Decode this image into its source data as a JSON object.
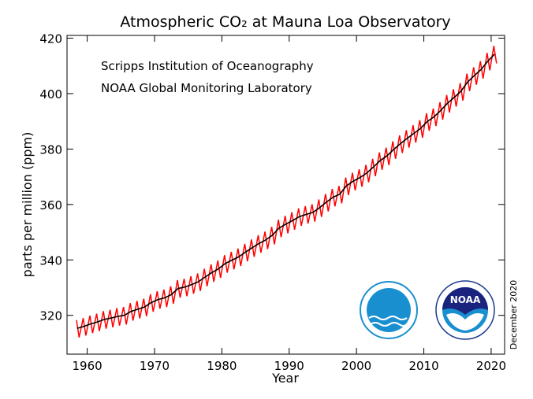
{
  "chart_data": {
    "type": "line",
    "title": "Atmospheric CO₂ at Mauna Loa Observatory",
    "annotations": [
      "Scripps Institution of Oceanography",
      "NOAA Global Monitoring Laboratory"
    ],
    "date_note": "December 2020",
    "logo_text": "NOAA",
    "xlabel": "Year",
    "ylabel": "parts per million (ppm)",
    "xlim": [
      1957,
      2022
    ],
    "ylim": [
      306,
      421
    ],
    "xticks": [
      1960,
      1970,
      1980,
      1990,
      2000,
      2010,
      2020
    ],
    "yticks": [
      320,
      340,
      360,
      380,
      400,
      420
    ],
    "series": [
      {
        "color": "#ff0000",
        "x": [
          1958.4,
          1958.8,
          1959.4,
          1959.8,
          1960.4,
          1960.8,
          1961.4,
          1961.8,
          1962.4,
          1962.8,
          1963.4,
          1963.8,
          1964.4,
          1964.8,
          1965.4,
          1965.8,
          1966.4,
          1966.8,
          1967.4,
          1967.8,
          1968.4,
          1968.8,
          1969.4,
          1969.8,
          1970.4,
          1970.8,
          1971.4,
          1971.8,
          1972.4,
          1972.8,
          1973.4,
          1973.8,
          1974.4,
          1974.8,
          1975.4,
          1975.8,
          1976.4,
          1976.8,
          1977.4,
          1977.8,
          1978.4,
          1978.8,
          1979.4,
          1979.8,
          1980.4,
          1980.8,
          1981.4,
          1981.8,
          1982.4,
          1982.8,
          1983.4,
          1983.8,
          1984.4,
          1984.8,
          1985.4,
          1985.8,
          1986.4,
          1986.8,
          1987.4,
          1987.8,
          1988.4,
          1988.8,
          1989.4,
          1989.8,
          1990.4,
          1990.8,
          1991.4,
          1991.8,
          1992.4,
          1992.8,
          1993.4,
          1993.8,
          1994.4,
          1994.8,
          1995.4,
          1995.8,
          1996.4,
          1996.8,
          1997.4,
          1997.8,
          1998.4,
          1998.8,
          1999.4,
          1999.8,
          2000.4,
          2000.8,
          2001.4,
          2001.8,
          2002.4,
          2002.8,
          2003.4,
          2003.8,
          2004.4,
          2004.8,
          2005.4,
          2005.8,
          2006.4,
          2006.8,
          2007.4,
          2007.8,
          2008.4,
          2008.8,
          2009.4,
          2009.8,
          2010.4,
          2010.8,
          2011.4,
          2011.8,
          2012.4,
          2012.8,
          2013.4,
          2013.8,
          2014.4,
          2014.8,
          2015.4,
          2015.8,
          2016.4,
          2016.8,
          2017.4,
          2017.8,
          2018.4,
          2018.8,
          2019.4,
          2019.8,
          2020.4,
          2020.8
        ],
        "values": [
          318.3,
          312.0,
          319.0,
          312.7,
          319.9,
          313.6,
          320.6,
          314.3,
          321.5,
          315.2,
          322.0,
          315.7,
          322.6,
          316.3,
          323.0,
          316.7,
          324.4,
          318.1,
          325.2,
          318.9,
          326.0,
          319.7,
          327.6,
          321.3,
          328.7,
          322.4,
          329.3,
          323.0,
          330.5,
          324.2,
          332.7,
          326.4,
          333.2,
          326.9,
          334.1,
          327.8,
          335.1,
          328.8,
          336.8,
          330.5,
          338.4,
          332.1,
          339.8,
          333.5,
          341.7,
          335.4,
          342.9,
          336.6,
          344.1,
          337.8,
          345.8,
          339.5,
          347.4,
          341.1,
          348.9,
          342.6,
          350.2,
          343.9,
          351.9,
          345.6,
          354.5,
          348.2,
          355.9,
          349.6,
          357.2,
          350.9,
          358.6,
          352.3,
          359.4,
          353.1,
          360.1,
          353.8,
          361.8,
          355.5,
          363.8,
          357.5,
          365.6,
          359.3,
          366.7,
          360.4,
          369.7,
          363.4,
          371.4,
          365.1,
          372.7,
          366.4,
          374.3,
          368.0,
          376.5,
          370.2,
          378.8,
          372.5,
          380.5,
          374.2,
          382.8,
          376.5,
          384.9,
          378.6,
          386.8,
          380.5,
          388.6,
          382.3,
          390.4,
          384.1,
          392.9,
          386.6,
          394.6,
          388.3,
          396.9,
          390.6,
          399.5,
          393.2,
          401.6,
          395.3,
          403.8,
          397.5,
          407.2,
          400.9,
          409.5,
          403.2,
          411.7,
          405.4,
          414.7,
          408.4,
          417.2,
          410.9
        ]
      },
      {
        "color": "#000000",
        "x": [
          1958.5,
          1959.5,
          1960.5,
          1961.5,
          1962.5,
          1963.5,
          1964.5,
          1965.5,
          1966.5,
          1967.5,
          1968.5,
          1969.5,
          1970.5,
          1971.5,
          1972.5,
          1973.5,
          1974.5,
          1975.5,
          1976.5,
          1977.5,
          1978.5,
          1979.5,
          1980.5,
          1981.5,
          1982.5,
          1983.5,
          1984.5,
          1985.5,
          1986.5,
          1987.5,
          1988.5,
          1989.5,
          1990.5,
          1991.5,
          1992.5,
          1993.5,
          1994.5,
          1995.5,
          1996.5,
          1997.5,
          1998.5,
          1999.5,
          2000.5,
          2001.5,
          2002.5,
          2003.5,
          2004.5,
          2005.5,
          2006.5,
          2007.5,
          2008.5,
          2009.5,
          2010.5,
          2011.5,
          2012.5,
          2013.5,
          2014.5,
          2015.5,
          2016.5,
          2017.5,
          2018.5,
          2019.5,
          2020.5
        ],
        "values": [
          315.3,
          316.0,
          316.9,
          317.6,
          318.5,
          319.0,
          319.6,
          320.0,
          321.4,
          322.2,
          323.0,
          324.6,
          325.7,
          326.3,
          327.5,
          329.7,
          330.2,
          331.1,
          332.1,
          333.8,
          335.4,
          336.8,
          338.7,
          339.9,
          341.1,
          342.8,
          344.4,
          345.9,
          347.2,
          348.9,
          351.5,
          352.9,
          354.2,
          355.6,
          356.4,
          357.1,
          358.8,
          360.8,
          362.6,
          363.7,
          366.7,
          368.4,
          369.7,
          371.3,
          373.5,
          375.8,
          377.5,
          379.8,
          381.9,
          383.8,
          385.6,
          387.4,
          389.9,
          391.6,
          393.9,
          396.5,
          398.6,
          400.8,
          404.2,
          406.5,
          408.7,
          411.7,
          414.2
        ]
      }
    ]
  }
}
